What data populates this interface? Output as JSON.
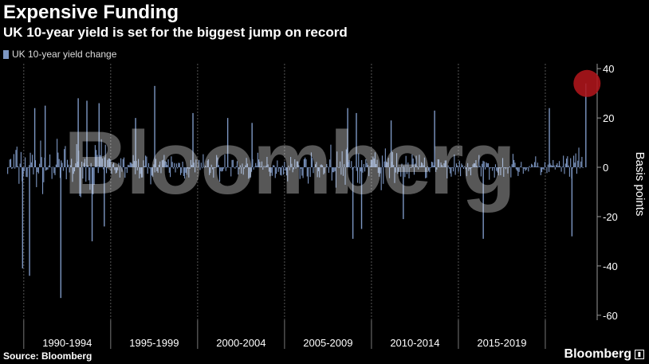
{
  "header": {
    "title": "Expensive Funding",
    "subtitle": "UK 10-year yield is set for the biggest jump on record"
  },
  "footer": {
    "source": "Source: Bloomberg",
    "brand": "Bloomberg",
    "watermark": "Bloomberg"
  },
  "colors": {
    "bars": "#7d97c3",
    "highlight": "#b0161b",
    "background": "#000000"
  },
  "chart_data": {
    "type": "bar",
    "title": "Expensive Funding",
    "subtitle": "UK 10-year yield is set for the biggest jump on record",
    "legend": [
      "UK 10-year yield change"
    ],
    "legend_position": "top-left",
    "ylabel": "Basis points",
    "ylim": [
      -62,
      42
    ],
    "yticks": [
      40,
      20,
      0,
      -20,
      -40,
      -60
    ],
    "xlim": [
      1989.0,
      2022.8
    ],
    "xcategories": [
      "1990-1994",
      "1995-1999",
      "2000-2004",
      "2005-2009",
      "2010-2014",
      "2015-2019"
    ],
    "grid": "vertical dashed",
    "series": [
      {
        "name": "UK 10-year yield change",
        "notable_points": [
          {
            "x": 1989.9,
            "y": -41
          },
          {
            "x": 1990.3,
            "y": -44
          },
          {
            "x": 1990.6,
            "y": 24
          },
          {
            "x": 1991.2,
            "y": 25
          },
          {
            "x": 1992.1,
            "y": -53
          },
          {
            "x": 1993.1,
            "y": 28
          },
          {
            "x": 1993.6,
            "y": 27
          },
          {
            "x": 1993.9,
            "y": -30
          },
          {
            "x": 1994.3,
            "y": 26
          },
          {
            "x": 1994.6,
            "y": -24
          },
          {
            "x": 1996.4,
            "y": 20
          },
          {
            "x": 1997.5,
            "y": 33
          },
          {
            "x": 1999.7,
            "y": 22
          },
          {
            "x": 2001.7,
            "y": 20
          },
          {
            "x": 2003.1,
            "y": 18
          },
          {
            "x": 2008.6,
            "y": 24
          },
          {
            "x": 2008.9,
            "y": -29
          },
          {
            "x": 2009.1,
            "y": 22
          },
          {
            "x": 2009.4,
            "y": -25
          },
          {
            "x": 2011.1,
            "y": 19
          },
          {
            "x": 2011.8,
            "y": -21
          },
          {
            "x": 2013.6,
            "y": 23
          },
          {
            "x": 2016.4,
            "y": -29
          },
          {
            "x": 2020.2,
            "y": 24
          },
          {
            "x": 2021.5,
            "y": -28
          },
          {
            "x": 2022.3,
            "y": 34
          }
        ],
        "highlight": {
          "x": 2022.4,
          "y": 34
        }
      }
    ]
  }
}
